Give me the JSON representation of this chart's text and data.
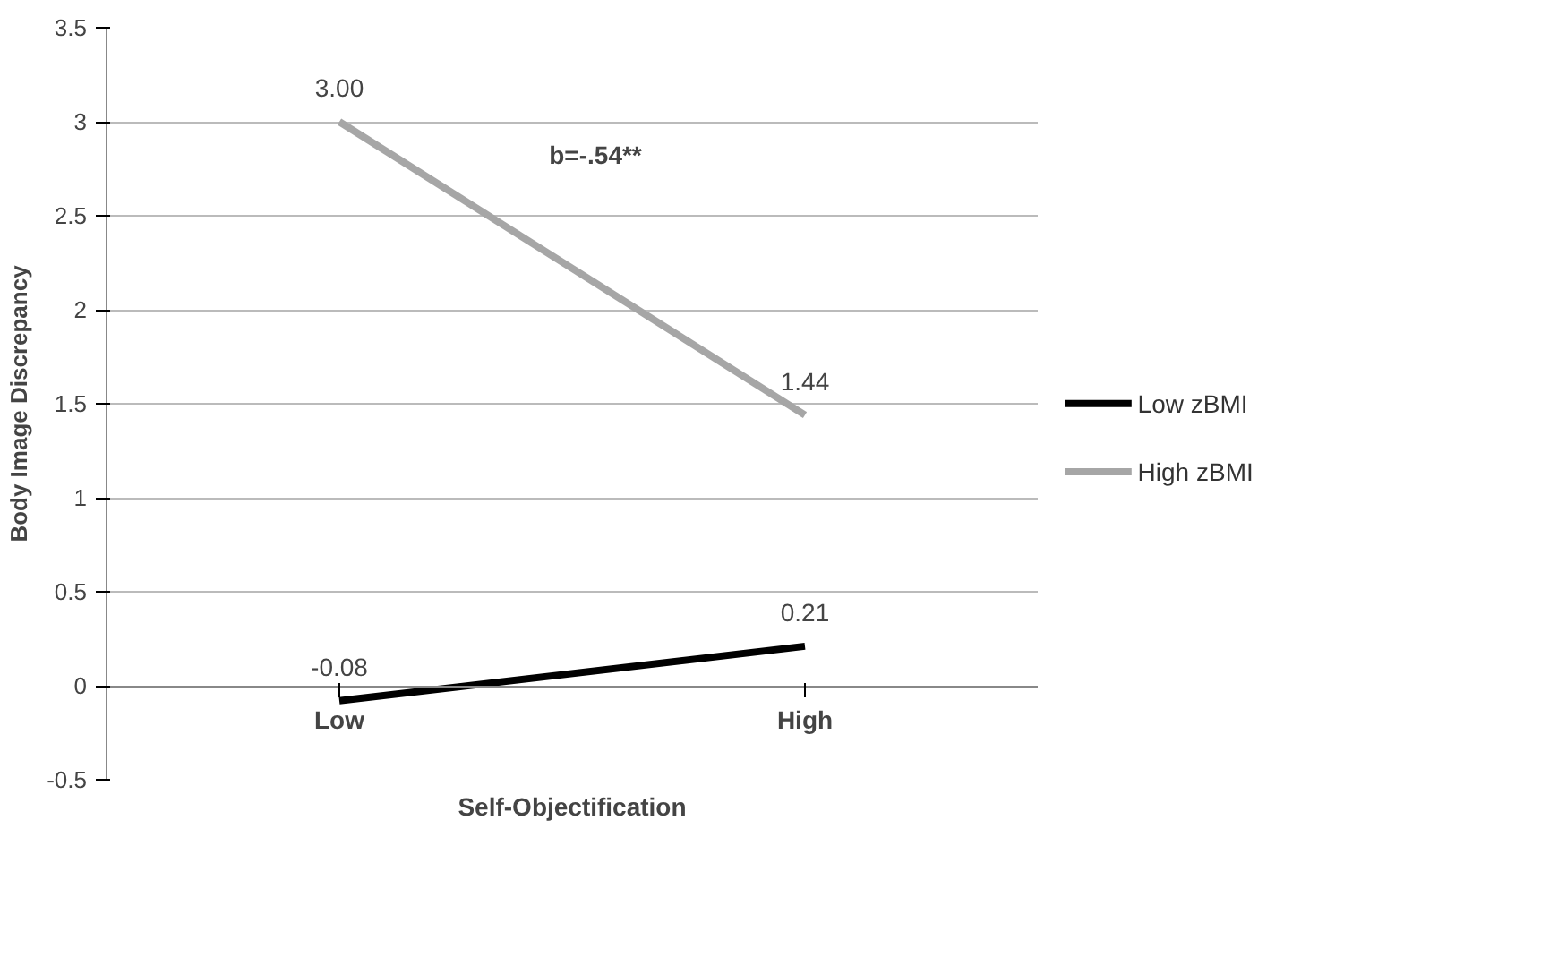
{
  "chart_data": {
    "type": "line",
    "xlabel": "Self-Objectification",
    "ylabel": "Body Image Discrepancy",
    "categories": [
      "Low",
      "High"
    ],
    "series": [
      {
        "name": "Low zBMI",
        "color": "#000000",
        "values": [
          -0.08,
          0.21
        ],
        "value_labels": [
          "-0.08",
          "0.21"
        ]
      },
      {
        "name": "High zBMI",
        "color": "#a6a6a6",
        "values": [
          3.0,
          1.44
        ],
        "value_labels": [
          "3.00",
          "1.44"
        ]
      }
    ],
    "ylim": [
      -0.5,
      3.5
    ],
    "yticks": [
      -0.5,
      0,
      0.5,
      1,
      1.5,
      2,
      2.5,
      3,
      3.5
    ],
    "grid": "y",
    "legend": "right",
    "marker": "none",
    "line_style": "solid",
    "annotations": [
      "b=-.54**"
    ]
  }
}
